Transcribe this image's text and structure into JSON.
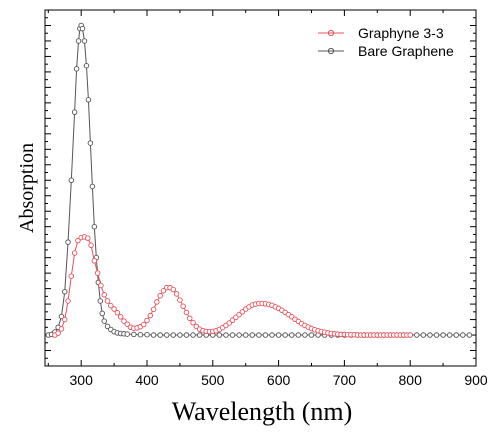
{
  "chart_data": {
    "type": "line",
    "xlabel": "Wavelength (nm)",
    "ylabel": "Absorption",
    "xlim": [
      245,
      900
    ],
    "xticks": [
      300,
      400,
      500,
      600,
      700,
      800,
      900
    ],
    "xtick_labels": [
      "300",
      "400",
      "500",
      "600",
      "700",
      "800",
      "900"
    ],
    "ylim": [
      -0.1,
      1.05
    ],
    "y_tick_labels_shown": false,
    "grid": false,
    "legend_position": "top-right",
    "series": [
      {
        "name": "Graphyne 3-3",
        "color": "#e8535d",
        "marker": "open-circle",
        "x": [
          260,
          265,
          270,
          275,
          280,
          285,
          290,
          295,
          300,
          305,
          310,
          315,
          320,
          325,
          330,
          335,
          340,
          345,
          350,
          355,
          360,
          365,
          370,
          375,
          380,
          385,
          390,
          395,
          400,
          405,
          410,
          415,
          420,
          425,
          430,
          435,
          440,
          445,
          450,
          455,
          460,
          465,
          470,
          475,
          480,
          485,
          490,
          495,
          500,
          505,
          510,
          515,
          520,
          525,
          530,
          535,
          540,
          545,
          550,
          555,
          560,
          565,
          570,
          575,
          580,
          585,
          590,
          595,
          600,
          605,
          610,
          615,
          620,
          625,
          630,
          635,
          640,
          645,
          650,
          655,
          660,
          665,
          670,
          675,
          680,
          685,
          690,
          695,
          700,
          705,
          710,
          715,
          720,
          725,
          730,
          735,
          740,
          745,
          750,
          755,
          760,
          765,
          770,
          775,
          780,
          785,
          790,
          795,
          800
        ],
        "y": [
          0.0,
          0.006,
          0.02,
          0.05,
          0.11,
          0.19,
          0.265,
          0.305,
          0.315,
          0.317,
          0.313,
          0.29,
          0.24,
          0.2,
          0.16,
          0.13,
          0.11,
          0.095,
          0.084,
          0.072,
          0.059,
          0.045,
          0.035,
          0.025,
          0.022,
          0.023,
          0.027,
          0.034,
          0.047,
          0.063,
          0.083,
          0.107,
          0.127,
          0.143,
          0.153,
          0.153,
          0.147,
          0.133,
          0.113,
          0.093,
          0.073,
          0.054,
          0.04,
          0.028,
          0.019,
          0.014,
          0.012,
          0.011,
          0.012,
          0.014,
          0.018,
          0.024,
          0.031,
          0.039,
          0.048,
          0.057,
          0.066,
          0.075,
          0.084,
          0.091,
          0.097,
          0.1,
          0.102,
          0.102,
          0.101,
          0.099,
          0.096,
          0.091,
          0.086,
          0.08,
          0.073,
          0.066,
          0.059,
          0.051,
          0.044,
          0.037,
          0.031,
          0.026,
          0.021,
          0.017,
          0.014,
          0.011,
          0.009,
          0.007,
          0.005,
          0.004,
          0.003,
          0.002,
          0.002,
          0.001,
          0.001,
          0.001,
          0.0,
          0.0,
          0.0,
          0.0,
          0.0,
          0.0,
          0.0,
          0.0,
          0.0,
          0.0,
          0.0,
          0.0,
          0.0,
          0.0,
          0.0,
          0.0,
          0.0
        ]
      },
      {
        "name": "Bare Graphene",
        "color": "#555555",
        "marker": "open-circle",
        "x": [
          250,
          255,
          260,
          265,
          270,
          275,
          280,
          285,
          290,
          293,
          296,
          298,
          300,
          302,
          305,
          308,
          311,
          314,
          317,
          320,
          323,
          326,
          329,
          332,
          335,
          340,
          345,
          350,
          355,
          360,
          365,
          370,
          380,
          390,
          400,
          410,
          420,
          430,
          440,
          450,
          460,
          470,
          480,
          490,
          500,
          510,
          520,
          530,
          540,
          550,
          560,
          570,
          580,
          590,
          600,
          610,
          620,
          630,
          640,
          650,
          660,
          670,
          680,
          690,
          700,
          710,
          720,
          730,
          740,
          750,
          760,
          770,
          780,
          790,
          800,
          810,
          820,
          830,
          840,
          850,
          860,
          870,
          880,
          890
        ],
        "y": [
          0.0,
          0.002,
          0.01,
          0.025,
          0.06,
          0.14,
          0.3,
          0.5,
          0.72,
          0.86,
          0.95,
          0.99,
          1.0,
          0.99,
          0.95,
          0.87,
          0.76,
          0.62,
          0.48,
          0.35,
          0.25,
          0.17,
          0.11,
          0.07,
          0.045,
          0.028,
          0.018,
          0.011,
          0.007,
          0.005,
          0.004,
          0.003,
          0.002,
          0.001,
          0.001,
          0.0,
          0.0,
          0.0,
          0.0,
          0.0,
          0.0,
          0.0,
          0.0,
          0.0,
          0.0,
          0.0,
          0.0,
          0.0,
          0.0,
          0.0,
          0.0,
          0.0,
          0.0,
          0.0,
          0.0,
          0.0,
          0.0,
          0.0,
          0.0,
          0.0,
          0.0,
          0.0,
          0.0,
          0.0,
          0.0,
          0.0,
          0.0,
          0.0,
          0.0,
          0.0,
          0.0,
          0.0,
          0.0,
          0.0,
          0.0,
          0.0,
          0.0,
          0.0,
          0.0,
          0.0,
          0.0,
          0.0,
          0.0,
          0.0
        ]
      }
    ]
  }
}
